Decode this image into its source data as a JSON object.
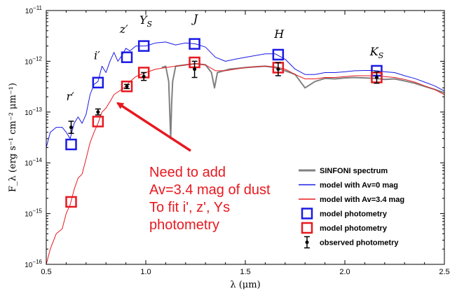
{
  "chart_data": {
    "type": "line",
    "xlabel": "λ (μm)",
    "ylabel": "F_λ (erg s⁻¹ cm⁻² μm⁻¹)",
    "xlim": [
      0.5,
      2.5
    ],
    "ylim": [
      1e-16,
      1e-11
    ],
    "yscale": "log",
    "grid": false,
    "legend_position": "bottom-right",
    "x_ticks": [
      0.5,
      1.0,
      1.5,
      2.0,
      2.5
    ],
    "x_tick_labels": [
      "0.5",
      "1.0",
      "1.5",
      "2.0",
      "2.5"
    ],
    "y_ticks": [
      1e-16,
      1e-15,
      1e-14,
      1e-13,
      1e-12,
      1e-11
    ],
    "y_tick_labels": [
      {
        "base": "10",
        "exp": "−16"
      },
      {
        "base": "10",
        "exp": "−15"
      },
      {
        "base": "10",
        "exp": "−14"
      },
      {
        "base": "10",
        "exp": "−13"
      },
      {
        "base": "10",
        "exp": "−12"
      },
      {
        "base": "10",
        "exp": "−11"
      }
    ],
    "band_labels": [
      {
        "text": "r′",
        "x": 0.62,
        "y": 1.7e-13
      },
      {
        "text": "i′",
        "x": 0.755,
        "y": 1.1e-12
      },
      {
        "text": "z′",
        "x": 0.89,
        "y": 3.6e-12
      },
      {
        "text": "YS",
        "x": 1.0,
        "y": 5.5e-12
      },
      {
        "text": "J",
        "x": 1.25,
        "y": 5.8e-12
      },
      {
        "text": "H",
        "x": 1.67,
        "y": 2.9e-12
      },
      {
        "text": "KS",
        "x": 2.16,
        "y": 1.3e-12
      }
    ],
    "series": [
      {
        "name": "SINFONI spectrum",
        "color": "#808080",
        "points": [
          [
            1.08,
            7.5e-13
          ],
          [
            1.1,
            8e-13
          ],
          [
            1.115,
            4e-13
          ],
          [
            1.125,
            3e-14
          ],
          [
            1.13,
            1.5e-13
          ],
          [
            1.135,
            4e-13
          ],
          [
            1.15,
            8e-13
          ],
          [
            1.2,
            8.5e-13
          ],
          [
            1.25,
            9e-13
          ],
          [
            1.3,
            8.5e-13
          ],
          [
            1.33,
            6e-13
          ],
          [
            1.345,
            3e-13
          ],
          [
            1.36,
            6e-13
          ],
          [
            1.42,
            7e-13
          ],
          [
            1.5,
            7.5e-13
          ],
          [
            1.55,
            7.8e-13
          ],
          [
            1.6,
            8e-13
          ],
          [
            1.65,
            7.5e-13
          ],
          [
            1.7,
            6.5e-13
          ],
          [
            1.75,
            5.5e-13
          ],
          [
            1.8,
            3e-13
          ],
          [
            1.85,
            4e-13
          ],
          [
            1.9,
            4.6e-13
          ],
          [
            1.95,
            4.5e-13
          ],
          [
            2.0,
            4.7e-13
          ],
          [
            2.05,
            4.8e-13
          ],
          [
            2.1,
            4.7e-13
          ],
          [
            2.15,
            4.6e-13
          ],
          [
            2.2,
            4.4e-13
          ],
          [
            2.25,
            4.5e-13
          ],
          [
            2.3,
            4.1e-13
          ],
          [
            2.35,
            3.7e-13
          ],
          [
            2.4,
            3.2e-13
          ],
          [
            2.45,
            2.8e-13
          ],
          [
            2.5,
            2.4e-13
          ]
        ]
      },
      {
        "name": "model with Av=0 mag",
        "color": "#1a1ae6",
        "points": [
          [
            0.5,
            2e-14
          ],
          [
            0.52,
            4e-14
          ],
          [
            0.55,
            5e-14
          ],
          [
            0.58,
            5e-14
          ],
          [
            0.6,
            4e-14
          ],
          [
            0.62,
            3e-14
          ],
          [
            0.64,
            6e-14
          ],
          [
            0.66,
            8e-14
          ],
          [
            0.68,
            6e-14
          ],
          [
            0.7,
            9e-14
          ],
          [
            0.72,
            2.2e-13
          ],
          [
            0.74,
            3.5e-13
          ],
          [
            0.76,
            4e-13
          ],
          [
            0.78,
            8e-13
          ],
          [
            0.8,
            6e-13
          ],
          [
            0.82,
            1e-12
          ],
          [
            0.84,
            1.5e-12
          ],
          [
            0.86,
            1e-12
          ],
          [
            0.88,
            1.3e-12
          ],
          [
            0.9,
            1.8e-12
          ],
          [
            0.92,
            1.6e-12
          ],
          [
            0.95,
            2e-12
          ],
          [
            1.0,
            2e-12
          ],
          [
            1.05,
            2.3e-12
          ],
          [
            1.1,
            2.4e-12
          ],
          [
            1.15,
            2.1e-12
          ],
          [
            1.2,
            2.3e-12
          ],
          [
            1.25,
            2.2e-12
          ],
          [
            1.3,
            1.9e-12
          ],
          [
            1.35,
            1.2e-12
          ],
          [
            1.4,
            1e-12
          ],
          [
            1.45,
            1.1e-12
          ],
          [
            1.5,
            1.2e-12
          ],
          [
            1.55,
            1.3e-12
          ],
          [
            1.6,
            1.4e-12
          ],
          [
            1.65,
            1.4e-12
          ],
          [
            1.7,
            1.1e-12
          ],
          [
            1.75,
            7e-13
          ],
          [
            1.8,
            5.5e-13
          ],
          [
            1.85,
            5.5e-13
          ],
          [
            1.9,
            6e-13
          ],
          [
            1.95,
            6e-13
          ],
          [
            2.0,
            6.2e-13
          ],
          [
            2.05,
            6.5e-13
          ],
          [
            2.1,
            6.6e-13
          ],
          [
            2.15,
            6.6e-13
          ],
          [
            2.2,
            6.2e-13
          ],
          [
            2.25,
            6e-13
          ],
          [
            2.3,
            5.2e-13
          ],
          [
            2.35,
            4.6e-13
          ],
          [
            2.4,
            3.9e-13
          ],
          [
            2.45,
            3.3e-13
          ],
          [
            2.5,
            2.6e-13
          ]
        ]
      },
      {
        "name": "model with Av=3.4 mag",
        "color": "#e8191f",
        "points": [
          [
            0.5,
            1e-16
          ],
          [
            0.52,
            2e-16
          ],
          [
            0.55,
            4e-16
          ],
          [
            0.58,
            5e-16
          ],
          [
            0.6,
            1e-15
          ],
          [
            0.62,
            1.5e-15
          ],
          [
            0.64,
            3e-15
          ],
          [
            0.66,
            5e-15
          ],
          [
            0.68,
            6e-15
          ],
          [
            0.7,
            1.2e-14
          ],
          [
            0.72,
            2.5e-14
          ],
          [
            0.74,
            4e-14
          ],
          [
            0.76,
            6e-14
          ],
          [
            0.78,
            1e-13
          ],
          [
            0.8,
            1.2e-13
          ],
          [
            0.82,
            1.6e-13
          ],
          [
            0.84,
            2.2e-13
          ],
          [
            0.86,
            2.5e-13
          ],
          [
            0.88,
            2.8e-13
          ],
          [
            0.9,
            3.2e-13
          ],
          [
            0.92,
            4e-13
          ],
          [
            0.95,
            5e-13
          ],
          [
            1.0,
            6e-13
          ],
          [
            1.05,
            7e-13
          ],
          [
            1.1,
            7.5e-13
          ],
          [
            1.15,
            8e-13
          ],
          [
            1.2,
            8.5e-13
          ],
          [
            1.25,
            9e-13
          ],
          [
            1.3,
            8.5e-13
          ],
          [
            1.35,
            6.5e-13
          ],
          [
            1.4,
            6.5e-13
          ],
          [
            1.45,
            7e-13
          ],
          [
            1.5,
            7.5e-13
          ],
          [
            1.55,
            7.8e-13
          ],
          [
            1.6,
            8e-13
          ],
          [
            1.65,
            7.8e-13
          ],
          [
            1.7,
            7e-13
          ],
          [
            1.75,
            5.5e-13
          ],
          [
            1.8,
            4.5e-13
          ],
          [
            1.85,
            4.5e-13
          ],
          [
            1.9,
            4.8e-13
          ],
          [
            1.95,
            4.8e-13
          ],
          [
            2.0,
            5e-13
          ],
          [
            2.05,
            5.2e-13
          ],
          [
            2.1,
            5.2e-13
          ],
          [
            2.15,
            5.2e-13
          ],
          [
            2.2,
            5e-13
          ],
          [
            2.25,
            4.8e-13
          ],
          [
            2.3,
            4.4e-13
          ],
          [
            2.35,
            3.9e-13
          ],
          [
            2.4,
            3.3e-13
          ],
          [
            2.45,
            2.8e-13
          ],
          [
            2.5,
            2.2e-13
          ]
        ]
      },
      {
        "name": "model photometry",
        "color": "#1a1ae6",
        "marker": "square",
        "points": [
          [
            0.625,
            2.3e-14
          ],
          [
            0.76,
            3.8e-13
          ],
          [
            0.905,
            1.2e-12
          ],
          [
            0.99,
            2e-12
          ],
          [
            1.245,
            2.2e-12
          ],
          [
            1.665,
            1.35e-12
          ],
          [
            2.16,
            6.5e-13
          ]
        ]
      },
      {
        "name": "model photometry",
        "color": "#e8191f",
        "marker": "square",
        "points": [
          [
            0.625,
            1.7e-15
          ],
          [
            0.76,
            6.5e-14
          ],
          [
            0.905,
            3.2e-13
          ],
          [
            0.99,
            6e-13
          ],
          [
            1.245,
            9.5e-13
          ],
          [
            1.665,
            7.5e-13
          ],
          [
            2.16,
            4.8e-13
          ]
        ]
      },
      {
        "name": "observed photometry",
        "color": "#000000",
        "marker": "errorbar",
        "points": [
          {
            "x": 0.625,
            "y": 5e-14,
            "lo": 3.8e-14,
            "hi": 6.6e-14
          },
          {
            "x": 0.76,
            "y": 1e-13,
            "lo": 8.8e-14,
            "hi": 1.15e-13
          },
          {
            "x": 0.905,
            "y": 3.2e-13,
            "lo": 2.9e-13,
            "hi": 3.5e-13
          },
          {
            "x": 0.99,
            "y": 5e-13,
            "lo": 4.2e-13,
            "hi": 6e-13
          },
          {
            "x": 1.245,
            "y": 7e-13,
            "lo": 4.8e-13,
            "hi": 1e-12
          },
          {
            "x": 1.665,
            "y": 7e-13,
            "lo": 5.2e-13,
            "hi": 9.4e-13
          },
          {
            "x": 2.16,
            "y": 4.8e-13,
            "lo": 3.7e-13,
            "hi": 6.2e-13
          }
        ]
      }
    ],
    "legend": [
      {
        "label": "SINFONI spectrum",
        "kind": "line-thick",
        "color": "#808080"
      },
      {
        "label": "model with Av=0 mag",
        "kind": "line",
        "color": "#1a1ae6"
      },
      {
        "label": "model with Av=3.4 mag",
        "kind": "line",
        "color": "#e8191f"
      },
      {
        "label": "model photometry",
        "kind": "square",
        "color": "#1a1ae6"
      },
      {
        "label": "model photometry",
        "kind": "square",
        "color": "#e8191f"
      },
      {
        "label": "observed photometry",
        "kind": "errorbar",
        "color": "#000000"
      }
    ],
    "annotation": {
      "lines": [
        "Need to add",
        "Av=3.4 mag of dust",
        "To fit i', z', Ys",
        "photometry"
      ],
      "color": "#e8191f",
      "arrow_to": {
        "x": 0.83,
        "y": 1.6e-13
      }
    }
  }
}
